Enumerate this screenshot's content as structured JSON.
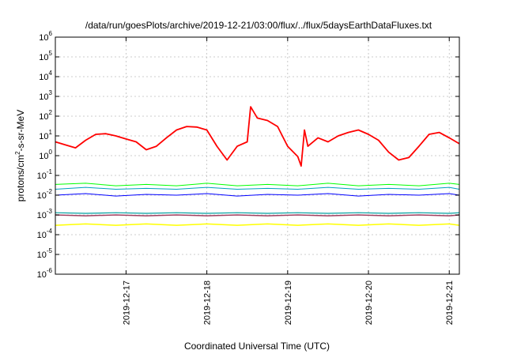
{
  "chart_data": {
    "type": "line",
    "title": "/data/run/goesPlots/archive/2019-12-21/03:00/flux/../flux/5daysEarthDataFluxes.txt",
    "xlabel": "Coordinated Universal Time (UTC)",
    "ylabel_base": "protons/cm",
    "ylabel_sup": "2",
    "ylabel_rest": "-s-sr-MeV",
    "yscale": "log",
    "ylim": [
      1e-06,
      1000000
    ],
    "xlim": [
      "2019-12-16T03:00",
      "2019-12-21T03:00"
    ],
    "grid": true,
    "y_ticks": [
      {
        "base": "10",
        "exp": "-6",
        "value": 1e-06
      },
      {
        "base": "10",
        "exp": "-5",
        "value": 1e-05
      },
      {
        "base": "10",
        "exp": "-4",
        "value": 0.0001
      },
      {
        "base": "10",
        "exp": "-3",
        "value": 0.001
      },
      {
        "base": "10",
        "exp": "-2",
        "value": 0.01
      },
      {
        "base": "10",
        "exp": "-1",
        "value": 0.1
      },
      {
        "base": "10",
        "exp": "0",
        "value": 1
      },
      {
        "base": "10",
        "exp": "1",
        "value": 10
      },
      {
        "base": "10",
        "exp": "2",
        "value": 100
      },
      {
        "base": "10",
        "exp": "3",
        "value": 1000
      },
      {
        "base": "10",
        "exp": "4",
        "value": 10000
      },
      {
        "base": "10",
        "exp": "5",
        "value": 100000
      },
      {
        "base": "10",
        "exp": "6",
        "value": 1000000
      }
    ],
    "x_ticks": [
      {
        "label": "2019-12-17",
        "value": "2019-12-17T00:00"
      },
      {
        "label": "2019-12-18",
        "value": "2019-12-18T00:00"
      },
      {
        "label": "2019-12-19",
        "value": "2019-12-19T00:00"
      },
      {
        "label": "2019-12-20",
        "value": "2019-12-20T00:00"
      },
      {
        "label": "2019-12-21",
        "value": "2019-12-21T00:00"
      }
    ],
    "series": [
      {
        "color": "#ff0000",
        "width": 1.8,
        "x": [
          "2019-12-16T03:00",
          "2019-12-16T06:00",
          "2019-12-16T09:00",
          "2019-12-16T12:00",
          "2019-12-16T15:00",
          "2019-12-16T18:00",
          "2019-12-16T21:00",
          "2019-12-17T00:00",
          "2019-12-17T03:00",
          "2019-12-17T06:00",
          "2019-12-17T09:00",
          "2019-12-17T12:00",
          "2019-12-17T15:00",
          "2019-12-17T18:00",
          "2019-12-17T21:00",
          "2019-12-18T00:00",
          "2019-12-18T03:00",
          "2019-12-18T06:00",
          "2019-12-18T09:00",
          "2019-12-18T12:00",
          "2019-12-18T13:00",
          "2019-12-18T15:00",
          "2019-12-18T18:00",
          "2019-12-18T21:00",
          "2019-12-19T00:00",
          "2019-12-19T03:00",
          "2019-12-19T04:00",
          "2019-12-19T05:00",
          "2019-12-19T06:00",
          "2019-12-19T09:00",
          "2019-12-19T12:00",
          "2019-12-19T15:00",
          "2019-12-19T18:00",
          "2019-12-19T21:00",
          "2019-12-20T00:00",
          "2019-12-20T03:00",
          "2019-12-20T06:00",
          "2019-12-20T09:00",
          "2019-12-20T12:00",
          "2019-12-20T15:00",
          "2019-12-20T18:00",
          "2019-12-20T21:00",
          "2019-12-21T00:00",
          "2019-12-21T03:00"
        ],
        "y": [
          5,
          3.5,
          2.5,
          6,
          12,
          13,
          10,
          7,
          5,
          2,
          3,
          8,
          20,
          30,
          28,
          20,
          3,
          0.6,
          3,
          5,
          300,
          80,
          60,
          30,
          3,
          0.9,
          0.3,
          20,
          3,
          8,
          5,
          10,
          15,
          20,
          12,
          6,
          1.5,
          0.6,
          0.8,
          3,
          12,
          15,
          8,
          4
        ]
      },
      {
        "color": "#00ff00",
        "width": 1.0,
        "x": [
          "2019-12-16T03:00",
          "2019-12-16T12:00",
          "2019-12-16T21:00",
          "2019-12-17T06:00",
          "2019-12-17T15:00",
          "2019-12-18T00:00",
          "2019-12-18T09:00",
          "2019-12-18T18:00",
          "2019-12-19T03:00",
          "2019-12-19T12:00",
          "2019-12-19T21:00",
          "2019-12-20T06:00",
          "2019-12-20T15:00",
          "2019-12-21T00:00",
          "2019-12-21T03:00"
        ],
        "y": [
          0.035,
          0.04,
          0.03,
          0.035,
          0.03,
          0.04,
          0.03,
          0.035,
          0.03,
          0.04,
          0.03,
          0.035,
          0.03,
          0.04,
          0.035
        ]
      },
      {
        "color": "#00a0c0",
        "width": 1.0,
        "x": [
          "2019-12-16T03:00",
          "2019-12-16T12:00",
          "2019-12-16T21:00",
          "2019-12-17T06:00",
          "2019-12-17T15:00",
          "2019-12-18T00:00",
          "2019-12-18T09:00",
          "2019-12-18T18:00",
          "2019-12-19T03:00",
          "2019-12-19T12:00",
          "2019-12-19T21:00",
          "2019-12-20T06:00",
          "2019-12-20T15:00",
          "2019-12-21T00:00",
          "2019-12-21T03:00"
        ],
        "y": [
          0.02,
          0.025,
          0.02,
          0.022,
          0.02,
          0.025,
          0.02,
          0.022,
          0.02,
          0.025,
          0.02,
          0.022,
          0.02,
          0.025,
          0.02
        ]
      },
      {
        "color": "#0000ff",
        "width": 1.0,
        "x": [
          "2019-12-16T03:00",
          "2019-12-16T12:00",
          "2019-12-16T21:00",
          "2019-12-17T06:00",
          "2019-12-17T15:00",
          "2019-12-18T00:00",
          "2019-12-18T09:00",
          "2019-12-18T18:00",
          "2019-12-19T03:00",
          "2019-12-19T12:00",
          "2019-12-19T21:00",
          "2019-12-20T06:00",
          "2019-12-20T15:00",
          "2019-12-21T00:00",
          "2019-12-21T03:00"
        ],
        "y": [
          0.01,
          0.012,
          0.009,
          0.011,
          0.01,
          0.012,
          0.009,
          0.011,
          0.01,
          0.012,
          0.009,
          0.011,
          0.01,
          0.012,
          0.01
        ]
      },
      {
        "color": "#00a0a0",
        "width": 1.2,
        "x": [
          "2019-12-16T03:00",
          "2019-12-16T12:00",
          "2019-12-16T21:00",
          "2019-12-17T06:00",
          "2019-12-17T15:00",
          "2019-12-18T00:00",
          "2019-12-18T09:00",
          "2019-12-18T18:00",
          "2019-12-19T03:00",
          "2019-12-19T12:00",
          "2019-12-19T21:00",
          "2019-12-20T06:00",
          "2019-12-20T15:00",
          "2019-12-21T00:00",
          "2019-12-21T03:00"
        ],
        "y": [
          0.0013,
          0.0012,
          0.0013,
          0.0012,
          0.0013,
          0.0012,
          0.0013,
          0.0012,
          0.0013,
          0.0012,
          0.0013,
          0.0012,
          0.0013,
          0.0012,
          0.0013
        ]
      },
      {
        "color": "#a04060",
        "width": 1.5,
        "x": [
          "2019-12-16T03:00",
          "2019-12-16T12:00",
          "2019-12-16T21:00",
          "2019-12-17T06:00",
          "2019-12-17T15:00",
          "2019-12-18T00:00",
          "2019-12-18T09:00",
          "2019-12-18T18:00",
          "2019-12-19T03:00",
          "2019-12-19T12:00",
          "2019-12-19T21:00",
          "2019-12-20T06:00",
          "2019-12-20T15:00",
          "2019-12-21T00:00",
          "2019-12-21T03:00"
        ],
        "y": [
          0.001,
          0.0009,
          0.001,
          0.0009,
          0.001,
          0.0009,
          0.001,
          0.0009,
          0.001,
          0.0009,
          0.001,
          0.0009,
          0.001,
          0.0009,
          0.001
        ]
      },
      {
        "color": "#ffff00",
        "width": 1.5,
        "x": [
          "2019-12-16T03:00",
          "2019-12-16T12:00",
          "2019-12-16T21:00",
          "2019-12-17T06:00",
          "2019-12-17T15:00",
          "2019-12-18T00:00",
          "2019-12-18T09:00",
          "2019-12-18T18:00",
          "2019-12-19T03:00",
          "2019-12-19T12:00",
          "2019-12-19T21:00",
          "2019-12-20T06:00",
          "2019-12-20T15:00",
          "2019-12-21T00:00",
          "2019-12-21T03:00"
        ],
        "y": [
          0.0003,
          0.00035,
          0.0003,
          0.00035,
          0.0003,
          0.00035,
          0.0003,
          0.00035,
          0.0003,
          0.00035,
          0.0003,
          0.00035,
          0.0003,
          0.00035,
          0.0003
        ]
      }
    ]
  }
}
